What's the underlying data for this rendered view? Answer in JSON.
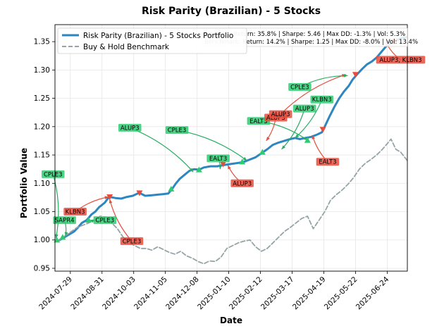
{
  "chart_data": {
    "type": "line",
    "title": "Risk Parity (Brazilian) - 5 Stocks",
    "xlabel": "Date",
    "ylabel": "Portfolio Value",
    "xlim": [
      "2024-07-13",
      "2025-07-15"
    ],
    "ylim": [
      0.945,
      1.38
    ],
    "grid": true,
    "legend": {
      "placement": "top-left"
    },
    "x_ticks": [
      "2024-07-29",
      "2024-08-31",
      "2024-10-03",
      "2024-11-05",
      "2024-12-08",
      "2025-01-10",
      "2025-02-12",
      "2025-03-17",
      "2025-04-19",
      "2025-05-22",
      "2025-06-24"
    ],
    "y_ticks": [
      0.95,
      1.0,
      1.05,
      1.1,
      1.15,
      1.2,
      1.25,
      1.3,
      1.35
    ],
    "stats_box": [
      "Strategy: Return: 35.8% | Sharpe: 5.46 | Max DD: -1.3% | Vol: 5.3%",
      "Benchmark: Return: 14.2% | Sharpe: 1.25 | Max DD: -8.0% | Vol: 13.4%"
    ],
    "series": [
      {
        "name": "Risk Parity (Brazilian) - 5 Stocks Portfolio",
        "color": "#2e86c1",
        "style": "solid",
        "points": [
          [
            "2024-07-18",
            1.0
          ],
          [
            "2024-07-23",
            1.005
          ],
          [
            "2024-07-28",
            1.01
          ],
          [
            "2024-08-02",
            1.015
          ],
          [
            "2024-08-06",
            1.022
          ],
          [
            "2024-08-10",
            1.03
          ],
          [
            "2024-08-15",
            1.035
          ],
          [
            "2024-08-20",
            1.045
          ],
          [
            "2024-08-24",
            1.05
          ],
          [
            "2024-08-28",
            1.058
          ],
          [
            "2024-08-31",
            1.062
          ],
          [
            "2024-09-03",
            1.066
          ],
          [
            "2024-09-06",
            1.073
          ],
          [
            "2024-09-08",
            1.076
          ],
          [
            "2024-09-14",
            1.074
          ],
          [
            "2024-09-20",
            1.073
          ],
          [
            "2024-09-26",
            1.076
          ],
          [
            "2024-10-02",
            1.078
          ],
          [
            "2024-10-07",
            1.082
          ],
          [
            "2024-10-09",
            1.083
          ],
          [
            "2024-10-15",
            1.078
          ],
          [
            "2024-10-22",
            1.079
          ],
          [
            "2024-10-28",
            1.08
          ],
          [
            "2024-11-03",
            1.081
          ],
          [
            "2024-11-08",
            1.082
          ],
          [
            "2024-11-12",
            1.09
          ],
          [
            "2024-11-16",
            1.1
          ],
          [
            "2024-11-20",
            1.108
          ],
          [
            "2024-11-25",
            1.115
          ],
          [
            "2024-11-30",
            1.122
          ],
          [
            "2024-12-05",
            1.125
          ],
          [
            "2024-12-10",
            1.124
          ],
          [
            "2024-12-15",
            1.128
          ],
          [
            "2024-12-22",
            1.13
          ],
          [
            "2024-12-29",
            1.13
          ],
          [
            "2025-01-04",
            1.132
          ],
          [
            "2025-01-12",
            1.134
          ],
          [
            "2025-01-20",
            1.136
          ],
          [
            "2025-01-26",
            1.138
          ],
          [
            "2025-02-01",
            1.142
          ],
          [
            "2025-02-07",
            1.146
          ],
          [
            "2025-02-13",
            1.153
          ],
          [
            "2025-02-19",
            1.16
          ],
          [
            "2025-02-25",
            1.168
          ],
          [
            "2025-03-03",
            1.172
          ],
          [
            "2025-03-09",
            1.175
          ],
          [
            "2025-03-15",
            1.178
          ],
          [
            "2025-03-20",
            1.18
          ],
          [
            "2025-03-25",
            1.178
          ],
          [
            "2025-03-31",
            1.18
          ],
          [
            "2025-04-06",
            1.182
          ],
          [
            "2025-04-12",
            1.186
          ],
          [
            "2025-04-17",
            1.19
          ],
          [
            "2025-04-20",
            1.2
          ],
          [
            "2025-04-25",
            1.218
          ],
          [
            "2025-04-30",
            1.235
          ],
          [
            "2025-05-05",
            1.25
          ],
          [
            "2025-05-10",
            1.262
          ],
          [
            "2025-05-15",
            1.272
          ],
          [
            "2025-05-19",
            1.283
          ],
          [
            "2025-05-24",
            1.293
          ],
          [
            "2025-05-29",
            1.302
          ],
          [
            "2025-06-03",
            1.31
          ],
          [
            "2025-06-08",
            1.315
          ],
          [
            "2025-06-13",
            1.322
          ],
          [
            "2025-06-18",
            1.332
          ],
          [
            "2025-06-23",
            1.342
          ],
          [
            "2025-06-28",
            1.348
          ],
          [
            "2025-07-03",
            1.352
          ],
          [
            "2025-07-08",
            1.356
          ],
          [
            "2025-07-15",
            1.358
          ]
        ]
      },
      {
        "name": "Buy & Hold Benchmark",
        "color": "#95a5a6",
        "style": "dashed",
        "points": [
          [
            "2024-07-18",
            1.0
          ],
          [
            "2024-07-24",
            1.008
          ],
          [
            "2024-07-30",
            1.015
          ],
          [
            "2024-08-05",
            1.022
          ],
          [
            "2024-08-11",
            1.026
          ],
          [
            "2024-08-17",
            1.03
          ],
          [
            "2024-08-23",
            1.035
          ],
          [
            "2024-08-29",
            1.042
          ],
          [
            "2024-09-04",
            1.04
          ],
          [
            "2024-09-10",
            1.03
          ],
          [
            "2024-09-16",
            1.02
          ],
          [
            "2024-09-22",
            1.005
          ],
          [
            "2024-09-28",
            0.995
          ],
          [
            "2024-10-04",
            0.99
          ],
          [
            "2024-10-10",
            0.985
          ],
          [
            "2024-10-16",
            0.985
          ],
          [
            "2024-10-22",
            0.982
          ],
          [
            "2024-10-28",
            0.988
          ],
          [
            "2024-11-03",
            0.983
          ],
          [
            "2024-11-09",
            0.978
          ],
          [
            "2024-11-15",
            0.975
          ],
          [
            "2024-11-21",
            0.98
          ],
          [
            "2024-11-27",
            0.972
          ],
          [
            "2024-12-03",
            0.968
          ],
          [
            "2024-12-09",
            0.962
          ],
          [
            "2024-12-15",
            0.958
          ],
          [
            "2024-12-21",
            0.963
          ],
          [
            "2024-12-27",
            0.962
          ],
          [
            "2025-01-02",
            0.97
          ],
          [
            "2025-01-08",
            0.985
          ],
          [
            "2025-01-14",
            0.99
          ],
          [
            "2025-01-20",
            0.995
          ],
          [
            "2025-01-26",
            0.998
          ],
          [
            "2025-02-01",
            1.0
          ],
          [
            "2025-02-07",
            0.988
          ],
          [
            "2025-02-13",
            0.98
          ],
          [
            "2025-02-19",
            0.985
          ],
          [
            "2025-02-25",
            0.995
          ],
          [
            "2025-03-03",
            1.005
          ],
          [
            "2025-03-09",
            1.015
          ],
          [
            "2025-03-15",
            1.022
          ],
          [
            "2025-03-21",
            1.03
          ],
          [
            "2025-03-27",
            1.038
          ],
          [
            "2025-04-02",
            1.042
          ],
          [
            "2025-04-08",
            1.02
          ],
          [
            "2025-04-14",
            1.035
          ],
          [
            "2025-04-20",
            1.05
          ],
          [
            "2025-04-26",
            1.07
          ],
          [
            "2025-05-02",
            1.08
          ],
          [
            "2025-05-08",
            1.088
          ],
          [
            "2025-05-14",
            1.098
          ],
          [
            "2025-05-20",
            1.11
          ],
          [
            "2025-05-26",
            1.125
          ],
          [
            "2025-06-01",
            1.135
          ],
          [
            "2025-06-07",
            1.142
          ],
          [
            "2025-06-13",
            1.15
          ],
          [
            "2025-06-19",
            1.16
          ],
          [
            "2025-06-25",
            1.172
          ],
          [
            "2025-06-28",
            1.178
          ],
          [
            "2025-07-03",
            1.16
          ],
          [
            "2025-07-08",
            1.155
          ],
          [
            "2025-07-15",
            1.14
          ]
        ]
      }
    ],
    "markers": [
      {
        "type": "buy",
        "date": "2024-07-15",
        "value": 1.0
      },
      {
        "type": "buy",
        "date": "2024-07-21",
        "value": 1.005
      },
      {
        "type": "buy",
        "date": "2024-08-17",
        "value": 1.035
      },
      {
        "type": "sell",
        "date": "2024-09-08",
        "value": 1.076
      },
      {
        "type": "sell",
        "date": "2024-10-09",
        "value": 1.083
      },
      {
        "type": "buy",
        "date": "2024-11-11",
        "value": 1.09
      },
      {
        "type": "buy",
        "date": "2024-12-10",
        "value": 1.124
      },
      {
        "type": "sell",
        "date": "2025-01-04",
        "value": 1.134
      },
      {
        "type": "buy",
        "date": "2025-01-24",
        "value": 1.138
      },
      {
        "type": "buy",
        "date": "2025-02-14",
        "value": 1.155
      },
      {
        "type": "buy",
        "date": "2025-04-02",
        "value": 1.176
      },
      {
        "type": "sell",
        "date": "2025-04-18",
        "value": 1.195
      },
      {
        "type": "sell",
        "date": "2025-05-22",
        "value": 1.292
      },
      {
        "type": "sell",
        "date": "2025-07-01",
        "value": 1.35
      }
    ],
    "annotations": [
      {
        "text": "CPLE3",
        "kind": "buy",
        "label": [
          -2,
          1.116
        ],
        "arrow_to": [
          1,
          1.003
        ]
      },
      {
        "text": "SAPR4",
        "kind": "buy",
        "label": [
          10,
          1.035
        ],
        "arrow_to": [
          11,
          1.007
        ]
      },
      {
        "text": "CPLE3",
        "kind": "buy",
        "label": [
          52,
          1.035
        ],
        "arrow_to": [
          36,
          1.035
        ]
      },
      {
        "text": "KLBN3",
        "kind": "sell",
        "label": [
          21,
          1.05
        ],
        "arrow_to": [
          56,
          1.076
        ]
      },
      {
        "text": "CPLE3",
        "kind": "sell",
        "label": [
          80,
          0.998
        ],
        "arrow_to": [
          57,
          1.072
        ]
      },
      {
        "text": "ALUP3",
        "kind": "buy",
        "label": [
          78,
          1.198
        ],
        "arrow_to": [
          144,
          1.12
        ]
      },
      {
        "text": "CPLE3",
        "kind": "buy",
        "label": [
          127,
          1.194
        ],
        "arrow_to": [
          200,
          1.14
        ]
      },
      {
        "text": "EALT3",
        "kind": "buy",
        "label": [
          170,
          1.144
        ],
        "arrow_to": [
          172,
          1.125
        ]
      },
      {
        "text": "ALUP3",
        "kind": "sell",
        "label": [
          195,
          1.1
        ],
        "arrow_to": [
          180,
          1.132
        ]
      },
      {
        "text": "EALT3",
        "kind": "buy",
        "label": [
          212,
          1.21
        ],
        "arrow_to": [
          263,
          1.176
        ]
      },
      {
        "text": "ALUP3",
        "kind": "sell",
        "label": [
          230,
          1.216
        ],
        "arrow_to": [
          220,
          1.175
        ]
      },
      {
        "text": "ALUP3",
        "kind": "buy",
        "label": [
          260,
          1.232
        ],
        "arrow_to": [
          236,
          1.16
        ]
      },
      {
        "text": "KLBN3",
        "kind": "buy",
        "label": [
          278,
          1.248
        ],
        "arrow_to": [
          250,
          1.18
        ]
      },
      {
        "text": "EALT3",
        "kind": "sell",
        "label": [
          284,
          1.138
        ],
        "arrow_to": [
          268,
          1.185
        ]
      },
      {
        "text": "ALUP3",
        "kind": "sell",
        "label": [
          235,
          1.222
        ],
        "arrow_to": [
          303,
          1.292
        ]
      },
      {
        "text": "CPLE3",
        "kind": "buy",
        "label": [
          255,
          1.27
        ],
        "arrow_to": [
          305,
          1.29
        ]
      },
      {
        "text": "ALUP3, KLBN3",
        "kind": "sell",
        "label": [
          360,
          1.318
        ],
        "arrow_to": [
          345,
          1.348
        ]
      }
    ]
  }
}
